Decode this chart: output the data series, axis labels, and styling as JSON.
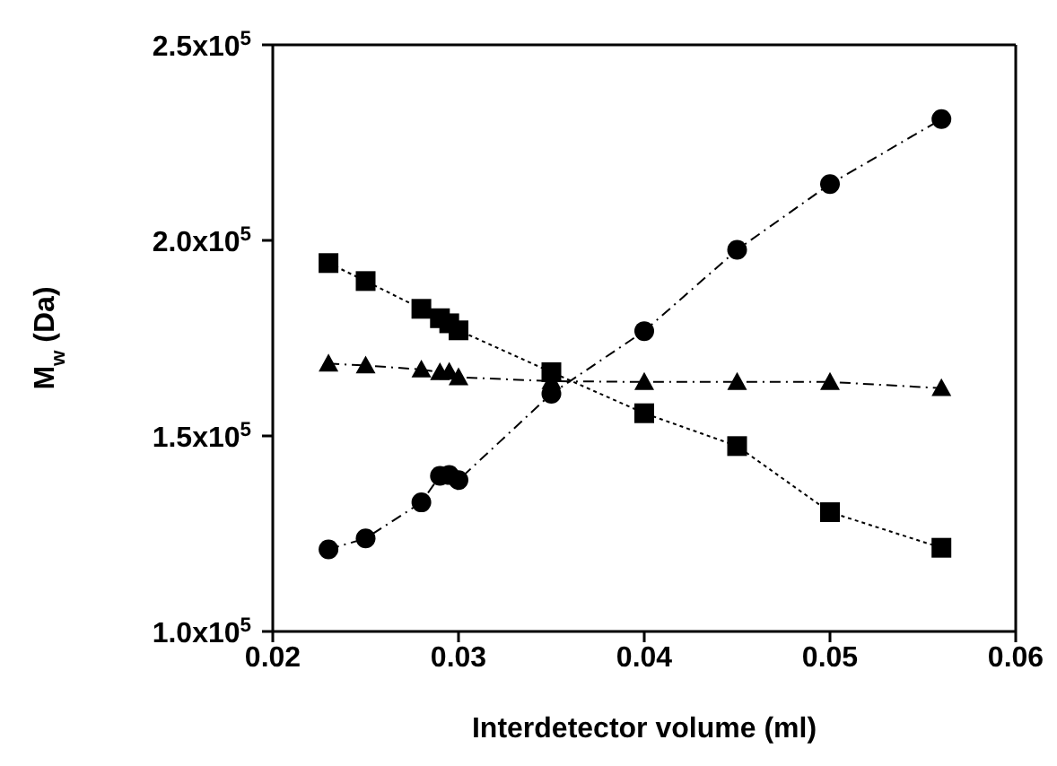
{
  "chart_data": {
    "type": "line",
    "xlabel": "Interdetector volume (ml)",
    "ylabel": "M$_{w}$ (Da)",
    "x": [
      0.023,
      0.025,
      0.028,
      0.029,
      0.0295,
      0.03,
      0.035,
      0.04,
      0.045,
      0.05,
      0.056
    ],
    "series": [
      {
        "color": "#000000",
        "marker": "circle",
        "line_style": "dashed",
        "values": [
          121000,
          123800,
          133000,
          139800,
          140000,
          138700,
          160800,
          176800,
          197600,
          214400,
          231000
        ]
      },
      {
        "color": "#000000",
        "marker": "square",
        "line_style": "dotted",
        "values": [
          194200,
          189600,
          182500,
          180100,
          178800,
          177000,
          166300,
          155800,
          147400,
          130500,
          121400
        ]
      },
      {
        "color": "#000000",
        "marker": "triangle",
        "line_style": "dashed",
        "values": [
          168500,
          168000,
          167000,
          166300,
          166400,
          165000,
          164000,
          163800,
          163800,
          163800,
          162200
        ]
      }
    ],
    "xlim": [
      0.02,
      0.06
    ],
    "xticks": [
      0.02,
      0.03,
      0.04,
      0.05,
      0.06
    ],
    "ylim": [
      100000,
      250000
    ],
    "yticks": [
      {
        "value": 100000,
        "label": "1.0x10$^{5}$"
      },
      {
        "value": 150000,
        "label": "1.5x10$^{5}$"
      },
      {
        "value": 200000,
        "label": "2.0x10$^{5}$"
      },
      {
        "value": 250000,
        "label": "2.5x10$^{5}$"
      }
    ],
    "grid": false,
    "legend": false
  }
}
